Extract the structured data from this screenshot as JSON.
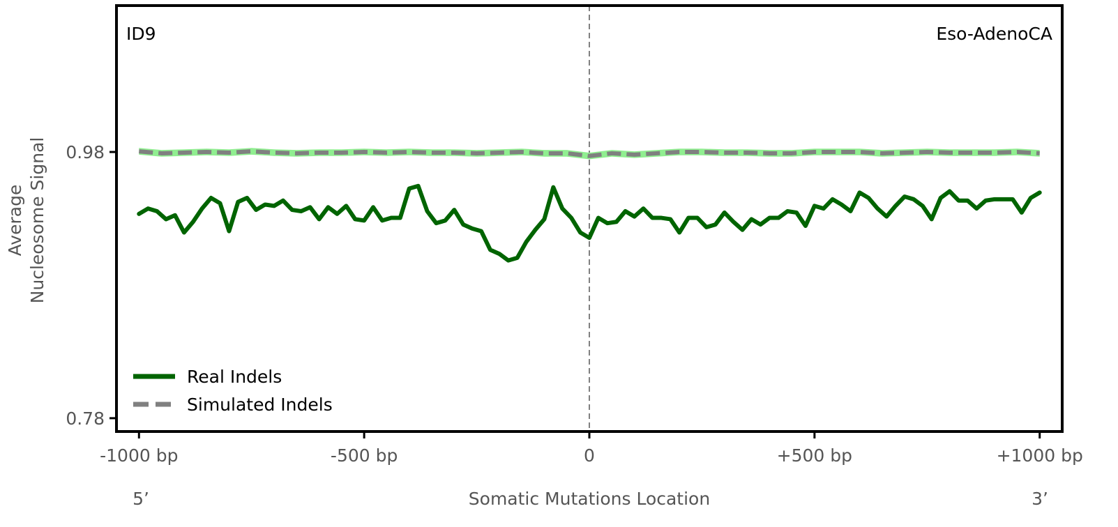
{
  "chart_data": {
    "type": "line",
    "signature_label": "ID9",
    "cancer_type_label": "Eso-AdenoCA",
    "xlabel": "Somatic Mutations Location",
    "ylabel_lines": [
      "Average",
      "Nucleosome Signal"
    ],
    "strand_start_label": "5’",
    "strand_end_label": "3’",
    "xlim": [
      -1050,
      1050
    ],
    "ylim": [
      0.77,
      1.09
    ],
    "x_ticks": [
      {
        "value": -1000,
        "label": "-1000 bp"
      },
      {
        "value": -500,
        "label": "-500 bp"
      },
      {
        "value": 0,
        "label": "0"
      },
      {
        "value": 500,
        "label": "+500 bp"
      },
      {
        "value": 1000,
        "label": "+1000 bp"
      }
    ],
    "y_ticks": [
      {
        "value": 0.98,
        "label": "0.98"
      },
      {
        "value": 0.78,
        "label": "0.78"
      }
    ],
    "center_line_x": 0,
    "legend": {
      "location": "lower-left"
    },
    "colors": {
      "real": "#006400",
      "simulated_band": "#90ee90",
      "simulated_line": "#808080",
      "center_line": "#808080",
      "frame": "#000000"
    },
    "series": [
      {
        "name": "Real Indels",
        "style": "solid",
        "x": [
          -1000,
          -980,
          -960,
          -940,
          -920,
          -900,
          -880,
          -860,
          -840,
          -820,
          -800,
          -780,
          -760,
          -740,
          -720,
          -700,
          -680,
          -660,
          -640,
          -620,
          -600,
          -580,
          -560,
          -540,
          -520,
          -500,
          -480,
          -460,
          -440,
          -420,
          -400,
          -380,
          -360,
          -340,
          -320,
          -300,
          -280,
          -260,
          -240,
          -220,
          -200,
          -180,
          -160,
          -140,
          -120,
          -100,
          -80,
          -60,
          -40,
          -20,
          0,
          20,
          40,
          60,
          80,
          100,
          120,
          140,
          160,
          180,
          200,
          220,
          240,
          260,
          280,
          300,
          320,
          340,
          360,
          380,
          400,
          420,
          440,
          460,
          480,
          500,
          520,
          540,
          560,
          580,
          600,
          620,
          640,
          660,
          680,
          700,
          720,
          740,
          760,
          780,
          800,
          820,
          840,
          860,
          880,
          900,
          920,
          940,
          960,
          980,
          1000
        ],
        "values": [
          0.9335,
          0.9375,
          0.9355,
          0.9295,
          0.9325,
          0.9195,
          0.9275,
          0.9375,
          0.9455,
          0.9415,
          0.9205,
          0.9425,
          0.9455,
          0.9365,
          0.9405,
          0.9395,
          0.9435,
          0.9365,
          0.9355,
          0.9385,
          0.9295,
          0.9385,
          0.9335,
          0.9395,
          0.9295,
          0.9285,
          0.9385,
          0.9285,
          0.9305,
          0.9305,
          0.9525,
          0.9545,
          0.9355,
          0.9265,
          0.9285,
          0.9365,
          0.9255,
          0.9225,
          0.9205,
          0.9065,
          0.9035,
          0.8985,
          0.9005,
          0.9125,
          0.9215,
          0.9295,
          0.9535,
          0.9375,
          0.9305,
          0.9195,
          0.9155,
          0.9305,
          0.9265,
          0.9275,
          0.9355,
          0.9315,
          0.9375,
          0.9305,
          0.9305,
          0.9295,
          0.9195,
          0.9305,
          0.9305,
          0.9235,
          0.9255,
          0.9345,
          0.9275,
          0.9215,
          0.9295,
          0.9255,
          0.9305,
          0.9305,
          0.9355,
          0.9345,
          0.9245,
          0.9395,
          0.9375,
          0.9445,
          0.9405,
          0.9355,
          0.9495,
          0.9455,
          0.9375,
          0.9315,
          0.9395,
          0.9465,
          0.9445,
          0.9395,
          0.9295,
          0.9455,
          0.9505,
          0.9435,
          0.9435,
          0.9375,
          0.9435,
          0.9445,
          0.9445,
          0.9445,
          0.9345,
          0.9455,
          0.9495
        ]
      },
      {
        "name": "Simulated Indels",
        "style": "dashed",
        "band_halfwidth": 0.0025,
        "x": [
          -1000,
          -950,
          -900,
          -850,
          -800,
          -750,
          -700,
          -650,
          -600,
          -550,
          -500,
          -450,
          -400,
          -350,
          -300,
          -250,
          -200,
          -150,
          -100,
          -50,
          0,
          50,
          100,
          150,
          200,
          250,
          300,
          350,
          400,
          450,
          500,
          550,
          600,
          650,
          700,
          750,
          800,
          850,
          900,
          950,
          1000
        ],
        "values": [
          0.9805,
          0.979,
          0.9795,
          0.98,
          0.9795,
          0.9805,
          0.9795,
          0.979,
          0.9795,
          0.9795,
          0.98,
          0.9795,
          0.98,
          0.9795,
          0.9795,
          0.979,
          0.9795,
          0.98,
          0.979,
          0.979,
          0.977,
          0.979,
          0.978,
          0.979,
          0.98,
          0.98,
          0.9795,
          0.9795,
          0.979,
          0.979,
          0.98,
          0.98,
          0.98,
          0.979,
          0.9795,
          0.98,
          0.9795,
          0.9795,
          0.9795,
          0.98,
          0.979
        ]
      }
    ]
  }
}
